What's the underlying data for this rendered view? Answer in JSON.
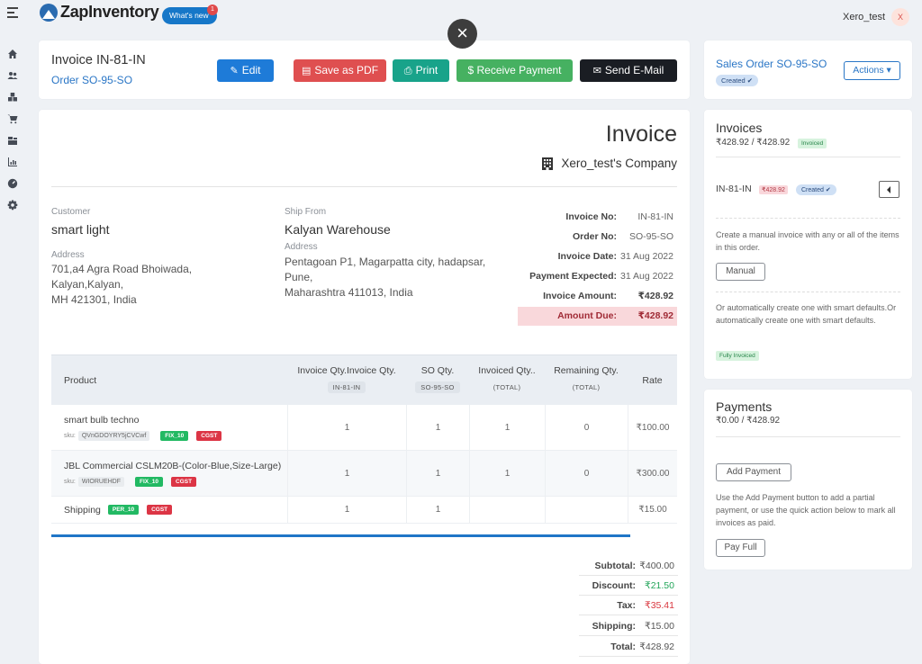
{
  "app": {
    "logo_text": "ZapInventory",
    "whats_new": "What's new",
    "whats_new_count": "1",
    "user_name": "Xero_test",
    "user_initial": "X",
    "close_glyph": "×"
  },
  "sidebar": [
    "home-icon",
    "users-icon",
    "boxes-icon",
    "cart-icon",
    "warehouse-icon",
    "reports-icon",
    "dashboard-icon",
    "gear-icon"
  ],
  "header": {
    "title": "Invoice IN-81-IN",
    "order_link": "Order SO-95-SO",
    "buttons": {
      "edit": "Edit",
      "pdf": "Save as PDF",
      "print": "Print",
      "receive": "$ Receive Payment",
      "email": "Send E-Mail"
    }
  },
  "invoice": {
    "heading": "Invoice",
    "company": "Xero_test's Company",
    "customer_label": "Customer",
    "customer_name": "smart light",
    "address_label": "Address",
    "customer_address": [
      "701,a4 Agra Road Bhoiwada,",
      "Kalyan,Kalyan,",
      "MH 421301, India"
    ],
    "ship_from_label": "Ship From",
    "ship_from_name": "Kalyan Warehouse",
    "ship_address_label": "Address",
    "ship_address": [
      "Pentagoan P1, Magarpatta city, hadapsar,",
      "Pune,",
      "Maharashtra 411013, India"
    ],
    "meta": [
      {
        "k": "Invoice No:",
        "v": "IN-81-IN"
      },
      {
        "k": "Order No:",
        "v": "SO-95-SO"
      },
      {
        "k": "Invoice Date:",
        "v": "31 Aug 2022"
      },
      {
        "k": "Payment Expected:",
        "v": "31 Aug 2022"
      },
      {
        "k": "Invoice Amount:",
        "v": "₹428.92"
      },
      {
        "k": "Amount Due:",
        "v": "₹428.92"
      }
    ]
  },
  "table": {
    "headers": {
      "product": "Product",
      "inv_qty": "Invoice Qty.Invoice Qty.",
      "inv_qty_sub": "IN-81-IN",
      "so_qty": "SO Qty.",
      "so_qty_sub": "SO-95-SO",
      "invoiced_qty": "Invoiced Qty..",
      "invoiced_sub": "(TOTAL)",
      "remaining_qty": "Remaining Qty.",
      "remaining_sub": "(TOTAL)",
      "rate": "Rate"
    },
    "rows": [
      {
        "name": "smart bulb techno",
        "sku_label": "sku:",
        "sku": "QVnGDOYRY5jCVCwf",
        "tag1": "FIX_10",
        "tag2": "CGST",
        "inv_qty": "1",
        "so_qty": "1",
        "invoiced": "1",
        "remaining": "0",
        "rate": "₹100.00"
      },
      {
        "name": "JBL Commercial CSLM20B-(Color-Blue,Size-Large)",
        "sku_label": "sku:",
        "sku": "WIORUEHDF",
        "tag1": "FIX_10",
        "tag2": "CGST",
        "inv_qty": "1",
        "so_qty": "1",
        "invoiced": "1",
        "remaining": "0",
        "rate": "₹300.00"
      },
      {
        "name": "Shipping",
        "tag1": "PER_10",
        "tag2": "CGST",
        "inv_qty": "1",
        "so_qty": "1",
        "invoiced": "",
        "remaining": "",
        "rate": "₹15.00"
      }
    ]
  },
  "totals": [
    {
      "k": "Subtotal:",
      "v": "₹400.00",
      "color": "#555555"
    },
    {
      "k": "Discount:",
      "v": "₹21.50",
      "color": "#22a559"
    },
    {
      "k": "Tax:",
      "v": "₹35.41",
      "color": "#d9363e"
    },
    {
      "k": "Shipping:",
      "v": "₹15.00",
      "color": "#555555"
    },
    {
      "k": "Total:",
      "v": "₹428.92",
      "color": "#555555"
    }
  ],
  "sales_order": {
    "title": "Sales Order SO-95-SO",
    "status": "Created ✔",
    "actions": "Actions ▾"
  },
  "invoices_panel": {
    "title": "Invoices",
    "amount": "₹428.92 / ₹428.92",
    "status": "Invoiced",
    "invoice_id": "IN-81-IN",
    "invoice_amount": "₹428.92",
    "invoice_status": "Created ✔",
    "manual_text": "Create a manual invoice with any or all of the items in this order.",
    "manual_button": "Manual",
    "auto_text": "Or automatically create one with smart defaults.Or automatically create one with smart defaults.",
    "fully_invoiced": "Fully Invoiced"
  },
  "payments_panel": {
    "title": "Payments",
    "amount": "₹0.00 / ₹428.92",
    "add_button": "Add Payment",
    "help_text": "Use the Add Payment button to add a partial payment, or use the quick action below to mark all invoices as paid.",
    "pay_full": "Pay Full"
  }
}
